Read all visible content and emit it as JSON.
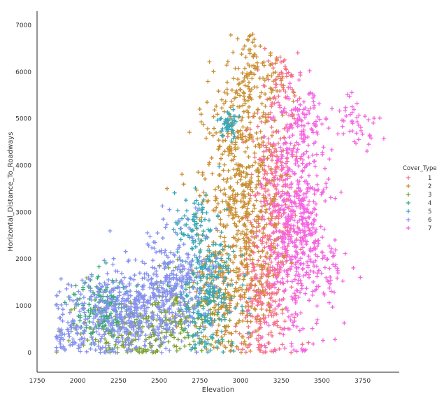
{
  "chart_data": {
    "type": "scatter",
    "xlabel": "Elevation",
    "ylabel": "Horizontal_Distance_To_Roadways",
    "xlim": [
      1750,
      3975
    ],
    "ylim": [
      -420,
      7300
    ],
    "xticks": [
      1750,
      2000,
      2250,
      2500,
      2750,
      3000,
      3250,
      3500,
      3750
    ],
    "yticks": [
      0,
      1000,
      2000,
      3000,
      4000,
      5000,
      6000,
      7000
    ],
    "marker": "+",
    "grid": false,
    "legend": {
      "title": "Cover_Type",
      "placement": "right"
    },
    "series": [
      {
        "name": "1",
        "color": "#f77189",
        "clusters": [
          {
            "x": 3200,
            "y": 3000,
            "sx": 80,
            "sy": 1400,
            "n": 380
          },
          {
            "x": 3120,
            "y": 1000,
            "sx": 80,
            "sy": 600,
            "n": 160
          },
          {
            "x": 3250,
            "y": 5800,
            "sx": 50,
            "sy": 300,
            "n": 40
          }
        ]
      },
      {
        "name": "2",
        "color": "#c98f33",
        "clusters": [
          {
            "x": 3000,
            "y": 3300,
            "sx": 120,
            "sy": 1300,
            "n": 520
          },
          {
            "x": 3080,
            "y": 5700,
            "sx": 90,
            "sy": 450,
            "n": 110
          },
          {
            "x": 2900,
            "y": 1200,
            "sx": 120,
            "sy": 700,
            "n": 200
          },
          {
            "x": 3060,
            "y": 6600,
            "sx": 40,
            "sy": 150,
            "n": 15
          }
        ]
      },
      {
        "name": "3",
        "color": "#7ba232",
        "clusters": [
          {
            "x": 2350,
            "y": 500,
            "sx": 220,
            "sy": 350,
            "n": 200
          },
          {
            "x": 2650,
            "y": 900,
            "sx": 100,
            "sy": 500,
            "n": 100
          }
        ]
      },
      {
        "name": "4",
        "color": "#35a979",
        "clusters": [
          {
            "x": 2150,
            "y": 1000,
            "sx": 90,
            "sy": 350,
            "n": 140
          }
        ]
      },
      {
        "name": "5",
        "color": "#39a7b8",
        "clusters": [
          {
            "x": 2790,
            "y": 1300,
            "sx": 90,
            "sy": 700,
            "n": 260
          },
          {
            "x": 2930,
            "y": 4900,
            "sx": 25,
            "sy": 150,
            "n": 50
          },
          {
            "x": 2720,
            "y": 2800,
            "sx": 60,
            "sy": 350,
            "n": 60
          }
        ]
      },
      {
        "name": "6",
        "color": "#8792ef",
        "clusters": [
          {
            "x": 2300,
            "y": 900,
            "sx": 180,
            "sy": 450,
            "n": 500
          },
          {
            "x": 2600,
            "y": 1700,
            "sx": 110,
            "sy": 500,
            "n": 220
          },
          {
            "x": 2000,
            "y": 300,
            "sx": 80,
            "sy": 180,
            "n": 60
          }
        ]
      },
      {
        "name": "7",
        "color": "#f564e3",
        "clusters": [
          {
            "x": 3350,
            "y": 2700,
            "sx": 90,
            "sy": 1200,
            "n": 560
          },
          {
            "x": 3380,
            "y": 5000,
            "sx": 70,
            "sy": 250,
            "n": 60
          },
          {
            "x": 3720,
            "y": 5000,
            "sx": 70,
            "sy": 300,
            "n": 45
          },
          {
            "x": 3550,
            "y": 1700,
            "sx": 60,
            "sy": 300,
            "n": 35
          }
        ]
      }
    ]
  }
}
